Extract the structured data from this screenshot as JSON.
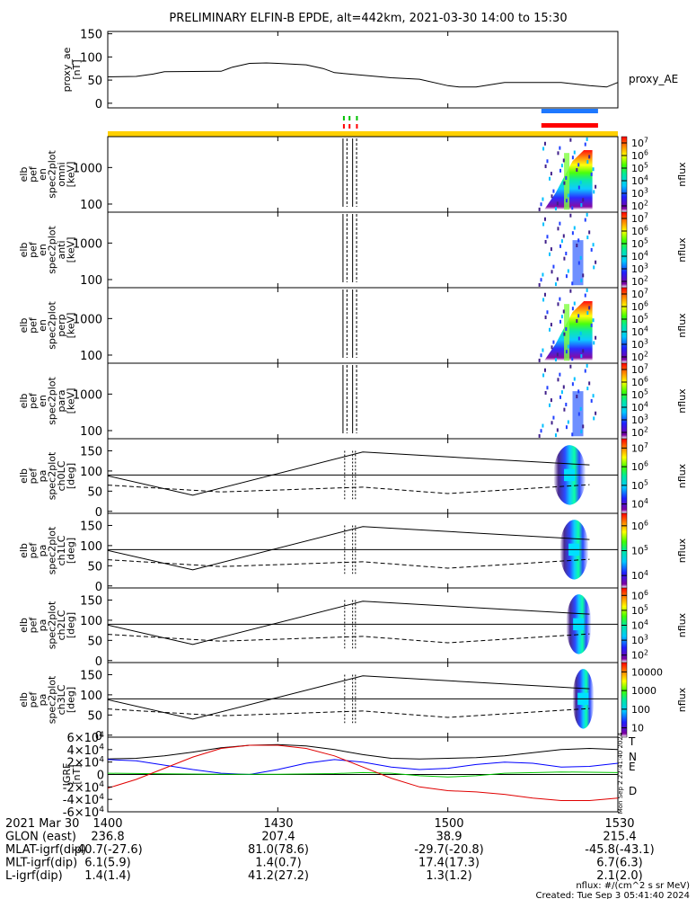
{
  "title": "PRELIMINARY ELFIN-B EPDE, alt=442km, 2021-03-30 14:00 to 15:30",
  "chart_data": [
    {
      "type": "line",
      "ylabel": "proxy_ae\n[nT]",
      "legend": "proxy_AE",
      "yticks": [
        "0",
        "50",
        "100",
        "150"
      ],
      "ylim": [
        -10,
        155
      ],
      "xlim_min": [
        0,
        90
      ],
      "x": [
        0,
        5,
        8,
        10,
        20,
        22,
        25,
        28,
        30,
        35,
        38,
        40,
        50,
        55,
        60,
        62,
        65,
        70,
        80,
        85,
        88,
        90
      ],
      "values": [
        57,
        58,
        63,
        68,
        69,
        78,
        86,
        87,
        86,
        83,
        75,
        66,
        55,
        52,
        38,
        35,
        35,
        45,
        45,
        38,
        35,
        45
      ]
    },
    {
      "type": "heatmap",
      "ylabel": "elb\npef\nen\nspec2plot\nomni\n[keV]",
      "yticks": [
        "100",
        "1000"
      ],
      "cbar_label": "nflux",
      "cbar_ticks": [
        "10^2",
        "10^3",
        "10^4",
        "10^5",
        "10^6",
        "10^7"
      ]
    },
    {
      "type": "heatmap",
      "ylabel": "elb\npef\nen\nspec2plot\nanti\n[keV]",
      "yticks": [
        "100",
        "1000"
      ],
      "cbar_label": "nflux",
      "cbar_ticks": [
        "10^2",
        "10^3",
        "10^4",
        "10^5",
        "10^6",
        "10^7"
      ]
    },
    {
      "type": "heatmap",
      "ylabel": "elb\npef\nen\nspec2plot\nperp\n[keV]",
      "yticks": [
        "100",
        "1000"
      ],
      "cbar_label": "nflux",
      "cbar_ticks": [
        "10^2",
        "10^3",
        "10^4",
        "10^5",
        "10^6",
        "10^7"
      ]
    },
    {
      "type": "heatmap",
      "ylabel": "elb\npef\nen\nspec2plot\npara\n[keV]",
      "yticks": [
        "100",
        "1000"
      ],
      "cbar_label": "nflux",
      "cbar_ticks": [
        "10^2",
        "10^3",
        "10^4",
        "10^5",
        "10^6",
        "10^7"
      ]
    },
    {
      "type": "heatmap",
      "ylabel": "elb\npef\npa\nspec2plot\nch0LC\n[deg]",
      "yticks": [
        "0",
        "50",
        "100",
        "150"
      ],
      "cbar_label": "nflux",
      "cbar_ticks": [
        "10^4",
        "10^5",
        "10^6",
        "10^7"
      ]
    },
    {
      "type": "heatmap",
      "ylabel": "elb\npef\npa\nspec2plot\nch1LC\n[deg]",
      "yticks": [
        "0",
        "50",
        "100",
        "150"
      ],
      "cbar_label": "nflux",
      "cbar_ticks": [
        "10^4",
        "10^5",
        "10^6"
      ]
    },
    {
      "type": "heatmap",
      "ylabel": "elb\npef\npa\nspec2plot\nch2LC\n[deg]",
      "yticks": [
        "0",
        "50",
        "100",
        "150"
      ],
      "cbar_label": "nflux",
      "cbar_ticks": [
        "10^2",
        "10^3",
        "10^4",
        "10^5",
        "10^6"
      ]
    },
    {
      "type": "heatmap",
      "ylabel": "elb\npef\npa\nspec2plot\nch3LC\n[deg]",
      "yticks": [
        "0",
        "50",
        "100",
        "150"
      ],
      "cbar_label": "nflux",
      "cbar_ticks": [
        "10",
        "100",
        "1000",
        "10000"
      ]
    },
    {
      "type": "line",
      "ylabel": "IGRF\n[nT]",
      "yticks": [
        "-6×10^4",
        "-4×10^4",
        "-2×10^4",
        "0",
        "2×10^4",
        "4×10^4",
        "6×10^4"
      ],
      "ylim": [
        -60000,
        60000
      ],
      "series": [
        {
          "name": "T",
          "color": "#000000",
          "x": [
            0,
            5,
            10,
            15,
            20,
            25,
            30,
            35,
            40,
            45,
            50,
            55,
            60,
            65,
            70,
            75,
            80,
            85,
            90
          ],
          "values": [
            25000,
            26000,
            30000,
            36000,
            43000,
            47000,
            48000,
            46000,
            40000,
            32000,
            26000,
            25000,
            26000,
            27000,
            30000,
            35000,
            40000,
            42000,
            40000
          ]
        },
        {
          "name": "N",
          "color": "#0000ff",
          "x": [
            0,
            5,
            10,
            15,
            20,
            25,
            30,
            35,
            40,
            45,
            50,
            55,
            60,
            65,
            70,
            75,
            80,
            85,
            90
          ],
          "values": [
            24000,
            22000,
            15000,
            8000,
            2000,
            0,
            8000,
            18000,
            24000,
            20000,
            12000,
            8000,
            10000,
            16000,
            20000,
            18000,
            12000,
            13000,
            18000
          ]
        },
        {
          "name": "E",
          "color": "#00c800",
          "x": [
            0,
            10,
            20,
            30,
            40,
            45,
            50,
            55,
            60,
            65,
            70,
            80,
            90
          ],
          "values": [
            2000,
            1000,
            500,
            500,
            1500,
            3000,
            2000,
            -2000,
            -4000,
            -2000,
            2000,
            4000,
            3000
          ]
        },
        {
          "name": "D",
          "color": "#e00000",
          "x": [
            0,
            5,
            10,
            15,
            20,
            25,
            30,
            35,
            40,
            45,
            50,
            55,
            60,
            65,
            70,
            75,
            80,
            85,
            90
          ],
          "values": [
            -22000,
            -8000,
            10000,
            28000,
            42000,
            47000,
            47000,
            42000,
            30000,
            12000,
            -6000,
            -20000,
            -26000,
            -28000,
            -32000,
            -38000,
            -42000,
            -42000,
            -38000
          ]
        }
      ]
    }
  ],
  "xaxis": {
    "ticks": [
      {
        "t": 0,
        "label": "1400"
      },
      {
        "t": 30,
        "label": "1430"
      },
      {
        "t": 60,
        "label": "1500"
      },
      {
        "t": 90,
        "label": "1530"
      }
    ],
    "rows": [
      {
        "label": "2021 Mar 30",
        "values": [
          "1400",
          "1430",
          "1500",
          "1530"
        ]
      },
      {
        "label": "GLON (east)",
        "values": [
          "236.8",
          "207.4",
          "38.9",
          "215.4"
        ]
      },
      {
        "label": "MLAT-igrf(dip)",
        "values": [
          "-40.7(-27.6)",
          "81.0(78.6)",
          "-29.7(-20.8)",
          "-45.8(-43.1)"
        ]
      },
      {
        "label": "MLT-igrf(dip)",
        "values": [
          "6.1(5.9)",
          "1.4(0.7)",
          "17.4(17.3)",
          "6.7(6.3)"
        ]
      },
      {
        "label": "L-igrf(dip)",
        "values": [
          "1.4(1.4)",
          "41.2(27.2)",
          "1.3(1.2)",
          "2.1(2.0)"
        ]
      }
    ]
  },
  "footer": {
    "units": "nflux: #/(cm^2 s sr MeV)",
    "created": "Created: Tue Sep  3 05:41:40 2024",
    "side_stamp": "Mon Sep  2 22:41:40 2024"
  },
  "colors": {
    "yellow_bar": "#ffd000",
    "blue_bar": "#1e78ff",
    "red_bar": "#ff0000",
    "green_mark": "#00c000"
  }
}
